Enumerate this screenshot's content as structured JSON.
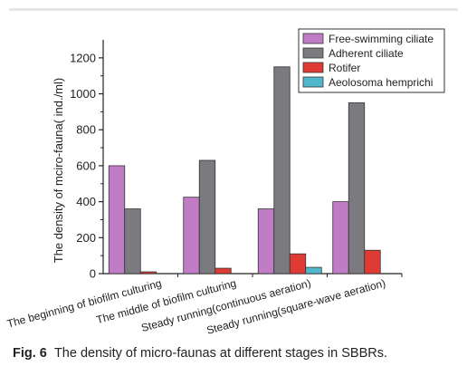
{
  "chart_data": {
    "type": "bar",
    "title": "",
    "xlabel": "",
    "ylabel": "The density of mciro-fauna( ind./ml)",
    "ylim": [
      0,
      1300
    ],
    "yticks": [
      0,
      200,
      400,
      600,
      800,
      1000,
      1200
    ],
    "ytick_labels": [
      "0",
      "200",
      "400",
      "600",
      "800",
      "1000",
      "1200"
    ],
    "categories": [
      "The beginning of biofilm culturing",
      "The middle of biofilm culturing",
      "Steady running(continuous aeration)",
      "Steady running(square-wave aeration)"
    ],
    "series": [
      {
        "name": "Free-swimming ciliate",
        "color": "#c07cc4",
        "values": [
          600,
          425,
          360,
          400
        ]
      },
      {
        "name": "Adherent ciliate",
        "color": "#7b7b7f",
        "values": [
          360,
          630,
          1150,
          950
        ]
      },
      {
        "name": "Rotifer",
        "color": "#e03a34",
        "values": [
          10,
          30,
          110,
          130
        ]
      },
      {
        "name": "Aeolosoma hemprichi",
        "color": "#4fb8cc",
        "values": [
          0,
          0,
          35,
          0
        ]
      }
    ],
    "grid": false,
    "legend_position": "top-right"
  },
  "caption": {
    "label": "Fig. 6",
    "text": "The density of micro-faunas at different stages in SBBRs."
  }
}
